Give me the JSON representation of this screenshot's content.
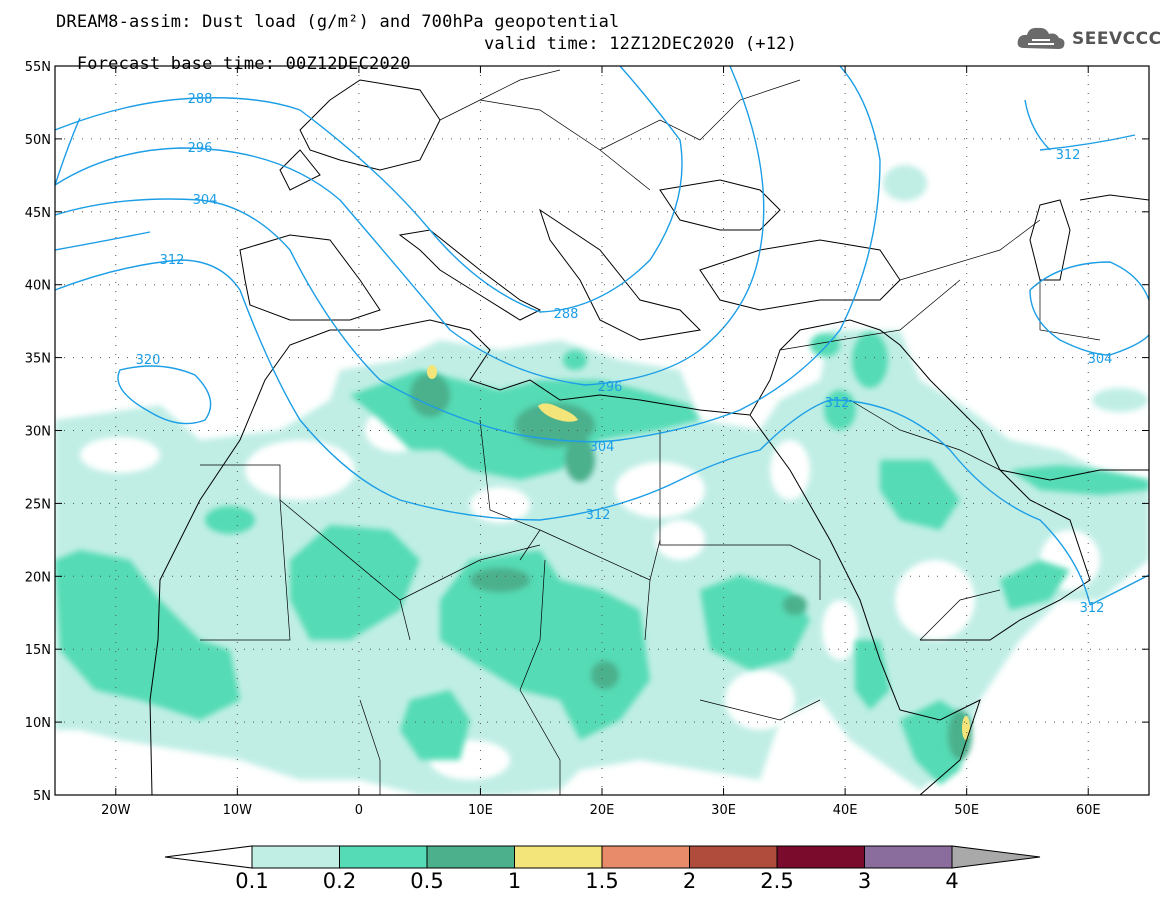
{
  "title_line1": "DREAM8-assim: Dust load (g/m²) and 700hPa geopotential",
  "title_base": "Forecast base time: 00Z12DEC2020",
  "title_valid": "valid time: 12Z12DEC2020 (+12)",
  "logo": {
    "text": "SEEVCCC",
    "icon": "cloud-icon"
  },
  "map": {
    "lon_range": [
      -25,
      65
    ],
    "lat_range": [
      5,
      55
    ],
    "x_ticks": [
      "20W",
      "10W",
      "0",
      "10E",
      "20E",
      "30E",
      "40E",
      "50E",
      "60E"
    ],
    "y_ticks": [
      "55N",
      "50N",
      "45N",
      "40N",
      "35N",
      "30N",
      "25N",
      "20N",
      "15N",
      "10N",
      "5N"
    ],
    "contour_labels": [
      "288",
      "296",
      "304",
      "312",
      "320",
      "288",
      "296",
      "304",
      "312",
      "312",
      "304",
      "312"
    ],
    "dust_colors": [
      "#c0eee5",
      "#55dbb5",
      "#4cb08c",
      "#f3e57a",
      "#e78b6a",
      "#b04c3c",
      "#7a0b2c",
      "#8a6c9d"
    ],
    "contour_color": "#1c9ee6"
  },
  "colorbar": {
    "labels": [
      "0.1",
      "0.2",
      "0.5",
      "1",
      "1.5",
      "2",
      "2.5",
      "3",
      "4"
    ],
    "colors": [
      "#c0eee5",
      "#55dbb5",
      "#4cb08c",
      "#f3e57a",
      "#e78b6a",
      "#b04c3c",
      "#7a0b2c",
      "#8a6c9d"
    ]
  }
}
